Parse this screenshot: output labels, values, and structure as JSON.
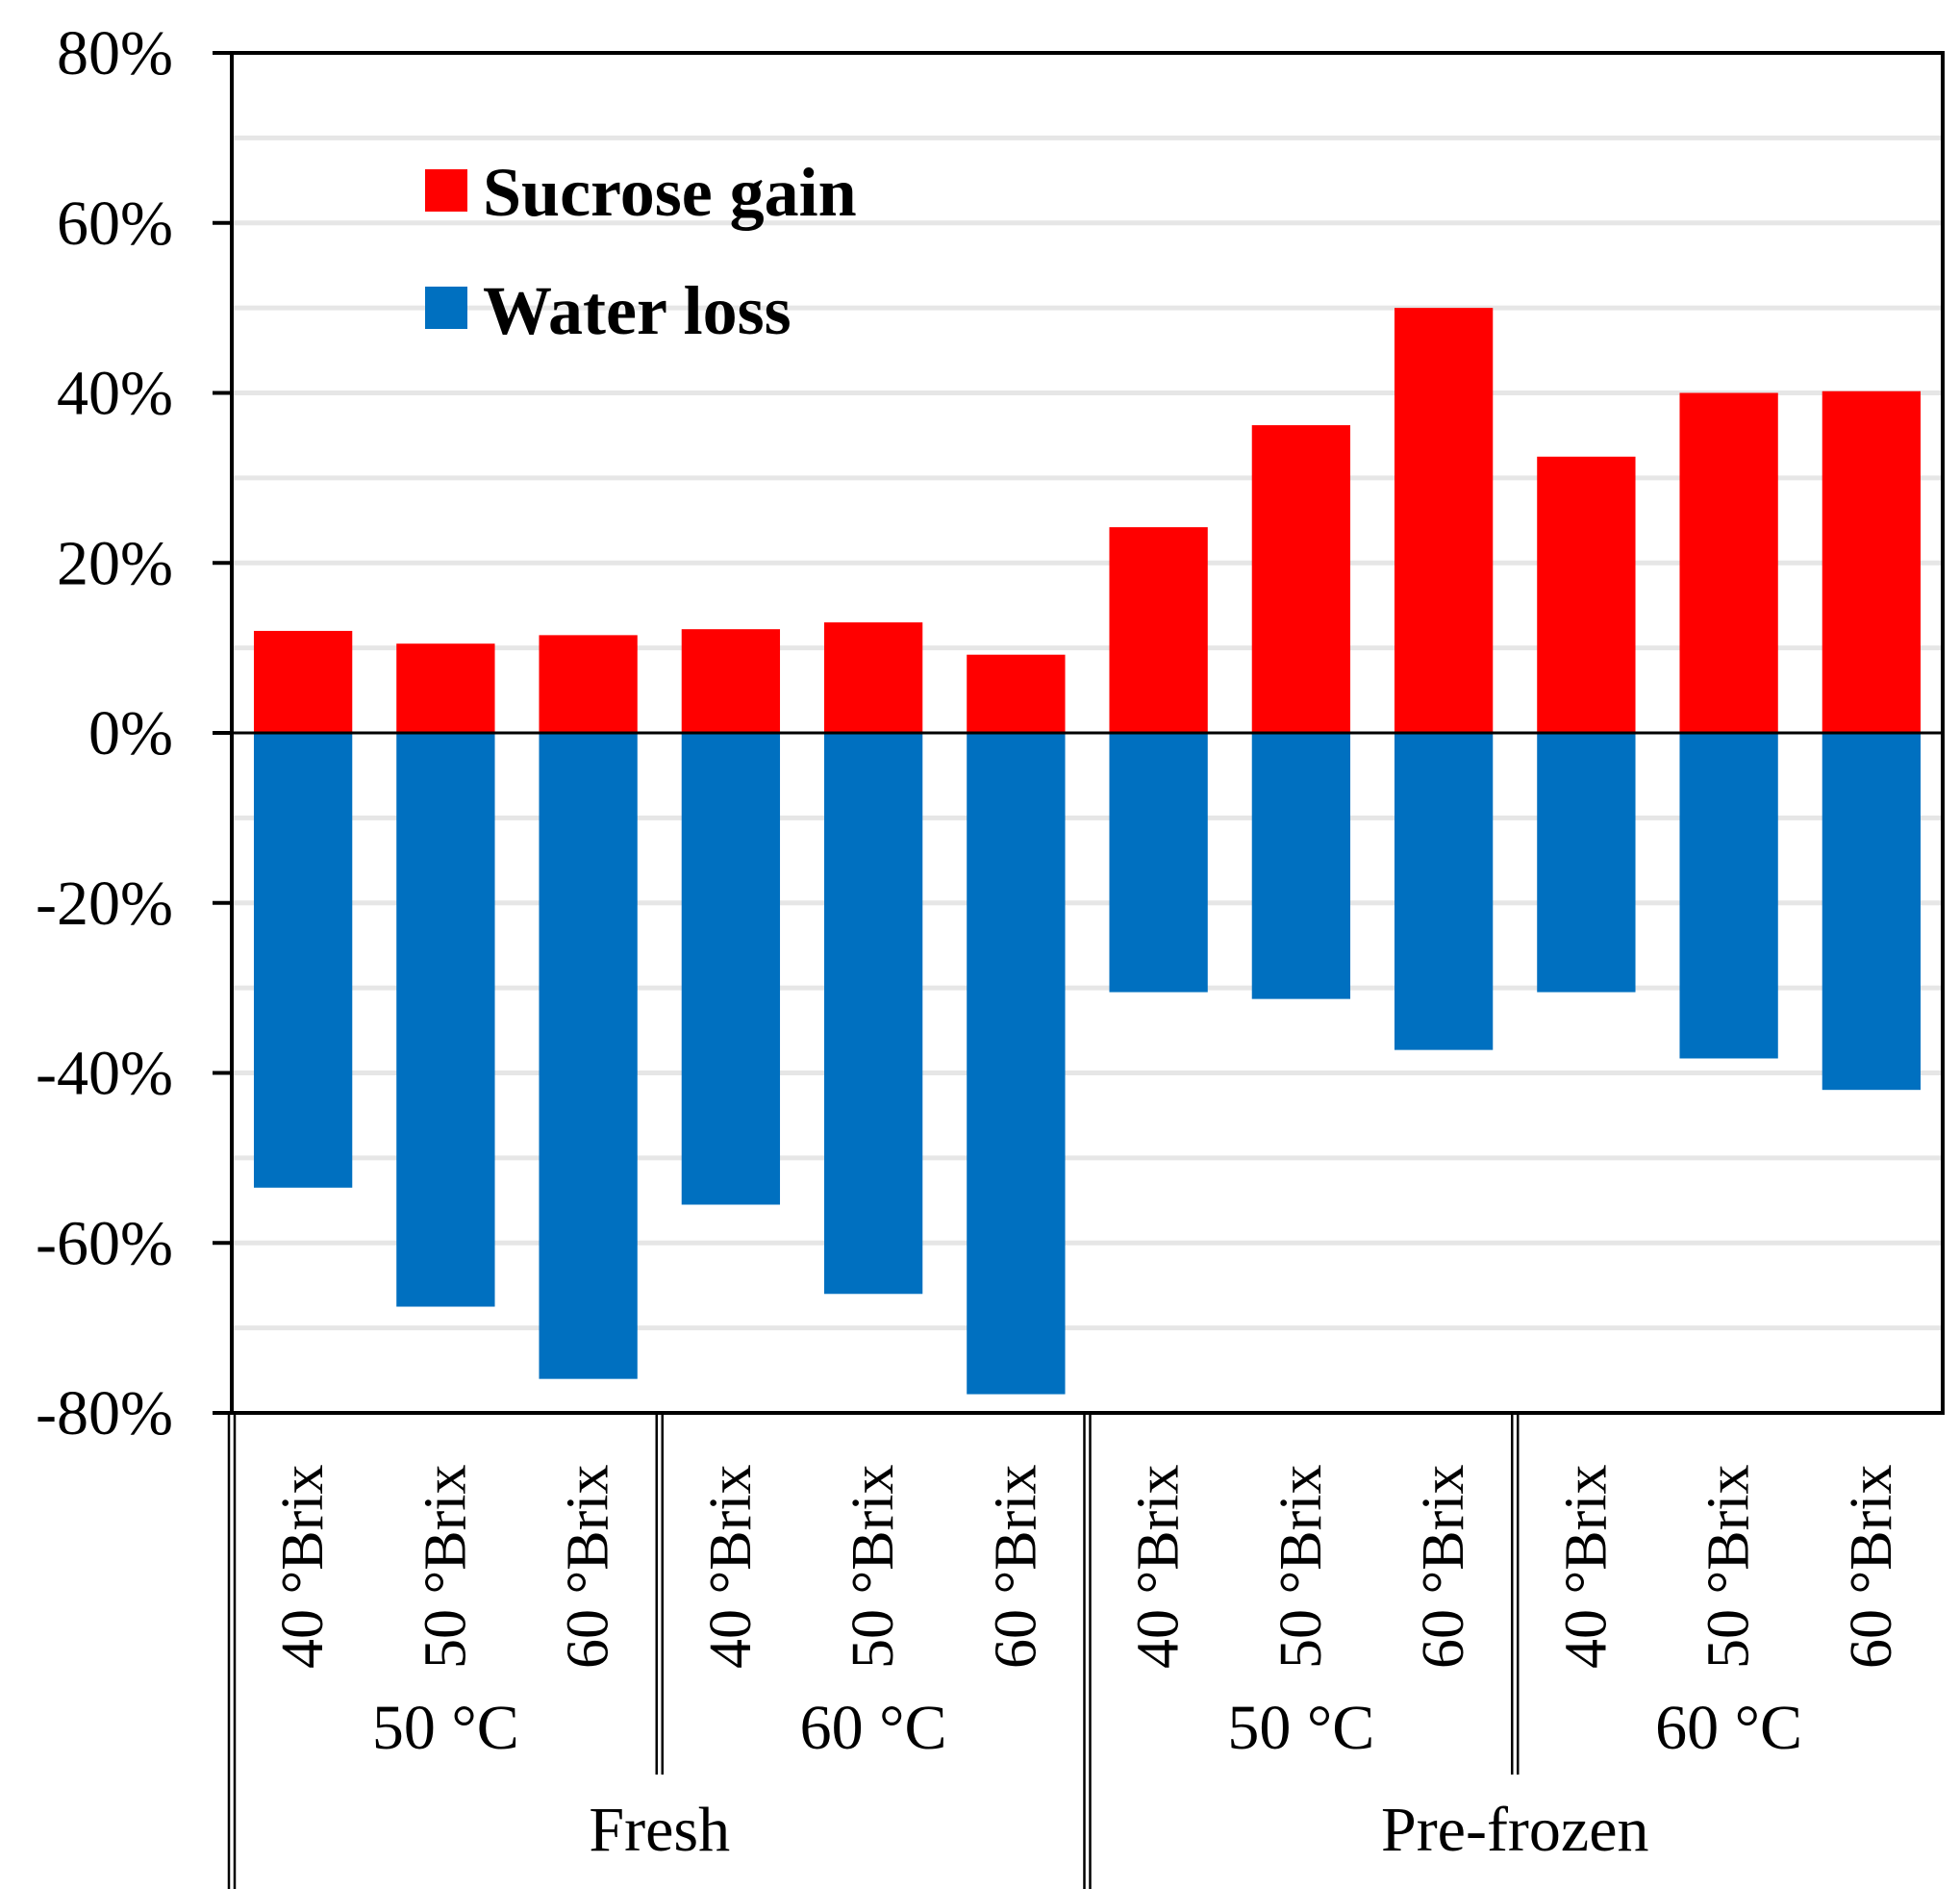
{
  "chart_data": {
    "type": "bar",
    "stacked_diverging": true,
    "title": "",
    "xlabel": "",
    "ylabel": "",
    "ylim": [
      -80,
      80
    ],
    "ytick_values": [
      80,
      60,
      40,
      20,
      0,
      -20,
      -40,
      -60,
      -80
    ],
    "ytick_labels": [
      "80%",
      "60%",
      "40%",
      "20%",
      "0%",
      "-20%",
      "-40%",
      "-60%",
      "-80%"
    ],
    "grid": true,
    "legend_position": "top-left",
    "categories": [
      "40 °Brix",
      "50 °Brix",
      "60 °Brix",
      "40 °Brix",
      "50 °Brix",
      "60 °Brix",
      "40 °Brix",
      "50 °Brix",
      "60 °Brix",
      "40 °Brix",
      "50 °Brix",
      "60 °Brix"
    ],
    "temperature_groups": [
      {
        "label": "50 °C",
        "span": 3
      },
      {
        "label": "60 °C",
        "span": 3
      },
      {
        "label": "50 °C",
        "span": 3
      },
      {
        "label": "60 °C",
        "span": 3
      }
    ],
    "treatment_groups": [
      {
        "label": "Fresh",
        "span": 6
      },
      {
        "label": "Pre-frozen",
        "span": 6
      }
    ],
    "series": [
      {
        "name": "Sucrose gain",
        "color": "#ff0000",
        "values": [
          12,
          10.5,
          11.5,
          12.2,
          13,
          9.2,
          24.2,
          36.2,
          50,
          32.5,
          40,
          40.2
        ]
      },
      {
        "name": "Water loss",
        "color": "#0070c0",
        "values": [
          -53.5,
          -67.5,
          -76,
          -55.5,
          -66,
          -77.8,
          -30.5,
          -31.3,
          -37.3,
          -30.5,
          -38.3,
          -42
        ]
      }
    ]
  }
}
